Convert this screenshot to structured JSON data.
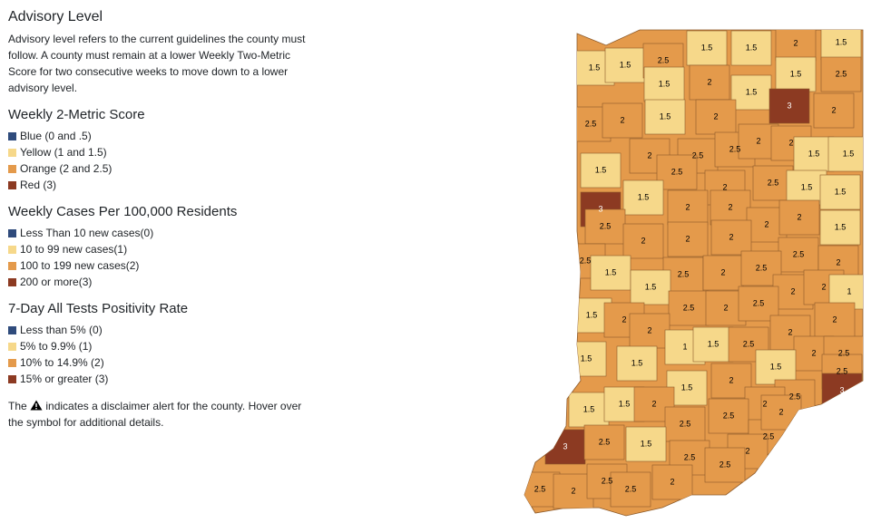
{
  "header": {
    "title": "Advisory Level",
    "description": "Advisory level refers to the current guidelines the county must follow. A county must remain at a lower Weekly Two-Metric Score for two consecutive weeks to move down to a lower advisory level."
  },
  "legends": [
    {
      "title": "Weekly 2-Metric Score",
      "items": [
        {
          "label": "Blue (0 and .5)",
          "color": "#2f4b7c"
        },
        {
          "label": "Yellow (1 and 1.5)",
          "color": "#f6d88a"
        },
        {
          "label": "Orange (2 and 2.5)",
          "color": "#e49a4b"
        },
        {
          "label": "Red (3)",
          "color": "#8c3a22"
        }
      ]
    },
    {
      "title": "Weekly Cases Per 100,000 Residents",
      "items": [
        {
          "label": "Less Than 10 new cases(0)",
          "color": "#2f4b7c"
        },
        {
          "label": "10 to 99 new cases(1)",
          "color": "#f6d88a"
        },
        {
          "label": "100 to 199 new cases(2)",
          "color": "#e49a4b"
        },
        {
          "label": "200 or more(3)",
          "color": "#8c3a22"
        }
      ]
    },
    {
      "title": "7-Day All Tests Positivity Rate",
      "items": [
        {
          "label": "Less than 5% (0)",
          "color": "#2f4b7c"
        },
        {
          "label": "5% to 9.9% (1)",
          "color": "#f6d88a"
        },
        {
          "label": "10% to 14.9% (2)",
          "color": "#e49a4b"
        },
        {
          "label": "15% or greater (3)",
          "color": "#8c3a22"
        }
      ]
    }
  ],
  "disclaimer": {
    "before": "The",
    "after": "indicates a disclaimer alert for the county. Hover over the symbol for additional details."
  },
  "map": {
    "counties": [
      1.5,
      1.5,
      2.5,
      1.5,
      1.5,
      1.5,
      2,
      1.5,
      2,
      1.5,
      1.5,
      2.5,
      3,
      2,
      2.5,
      2,
      1.5,
      2,
      2,
      2.5,
      2.5,
      2,
      2,
      1.5,
      1.5,
      1.5,
      2.5,
      2,
      2.5,
      1.5,
      1.5,
      3,
      1.5,
      2,
      2,
      2,
      2,
      1.5,
      2.5,
      2,
      2,
      2,
      2.5,
      2.5,
      2,
      1.5,
      2.5,
      2,
      2.5,
      1.5,
      2,
      2,
      1,
      1.5,
      2.5,
      2,
      2.5,
      2,
      2,
      2,
      1,
      1.5,
      2.5,
      2,
      1.5,
      1.5,
      2,
      2.5,
      1.5,
      2.5,
      2,
      1.5,
      2.5,
      2,
      3,
      1.5,
      1.5,
      2,
      2.5,
      2.5,
      2.5,
      2,
      3,
      2.5,
      1.5,
      2.5,
      2,
      2.5,
      2.5,
      2,
      2.5,
      2.5,
      2
    ]
  }
}
